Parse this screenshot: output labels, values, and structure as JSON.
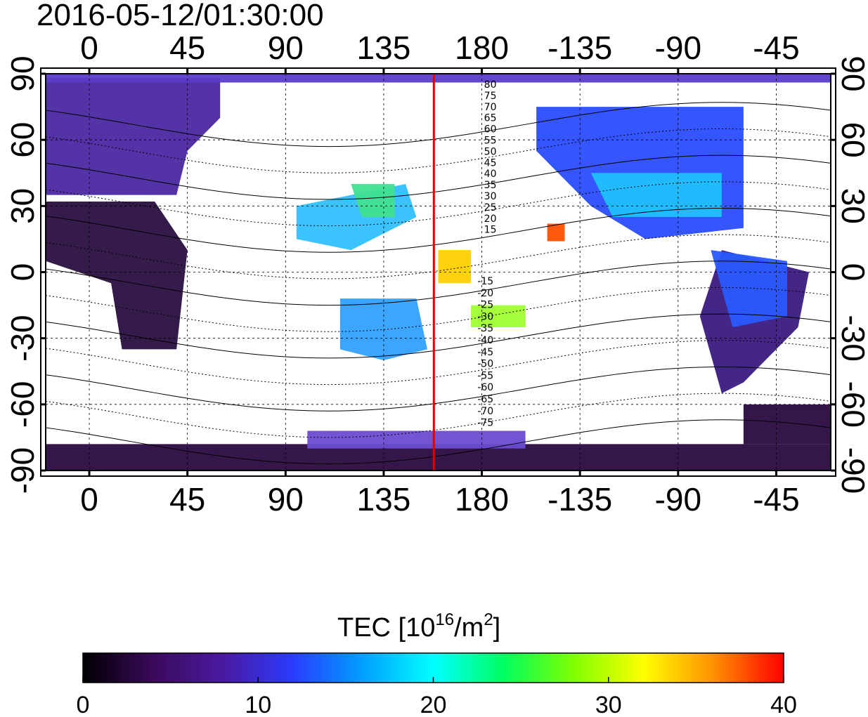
{
  "title": "2016-05-12/01:30:00",
  "map": {
    "top_lon_labels": [
      "0",
      "45",
      "90",
      "135",
      "180",
      "-135",
      "-90",
      "-45"
    ],
    "bottom_lon_labels": [
      "0",
      "45",
      "90",
      "135",
      "180",
      "-135",
      "-90",
      "-45"
    ],
    "left_lat_labels": [
      "90",
      "60",
      "30",
      "0",
      "-30",
      "-60",
      "-90"
    ],
    "right_lat_labels": [
      "90",
      "60",
      "30",
      "0",
      "-30",
      "-60",
      "-90"
    ],
    "lat_values": [
      90,
      60,
      30,
      0,
      -30,
      -60,
      -90
    ],
    "lon_values": [
      0,
      45,
      90,
      135,
      180,
      225,
      270,
      315
    ],
    "lon_range": [
      -20,
      340
    ],
    "lat_range": [
      -90,
      90
    ],
    "meridian_marker_lon": 158,
    "marker_color": "#e00000",
    "contour_labels_north": [
      "80",
      "75",
      "70",
      "65",
      "60",
      "55",
      "50",
      "45",
      "40",
      "35",
      "30",
      "25",
      "20",
      "15"
    ],
    "contour_labels_south": [
      "-15",
      "-20",
      "-25",
      "-30",
      "-35",
      "-40",
      "-45",
      "-50",
      "-55",
      "-60",
      "-65",
      "-70",
      "-75"
    ]
  },
  "colorbar": {
    "title_prefix": "TEC  [10",
    "title_sup1": "16",
    "title_mid": "/m",
    "title_sup2": "2",
    "title_suffix": "]",
    "min": 0,
    "max": 40,
    "tick_labels": [
      "0",
      "10",
      "20",
      "30",
      "40"
    ],
    "tick_values": [
      0,
      10,
      20,
      30,
      40
    ],
    "colors": [
      "#000000",
      "#3a0a5a",
      "#4a1aa0",
      "#2a3cff",
      "#00a0ff",
      "#00ffff",
      "#00ff60",
      "#80ff00",
      "#ffff00",
      "#ff9000",
      "#ff0000"
    ]
  }
}
